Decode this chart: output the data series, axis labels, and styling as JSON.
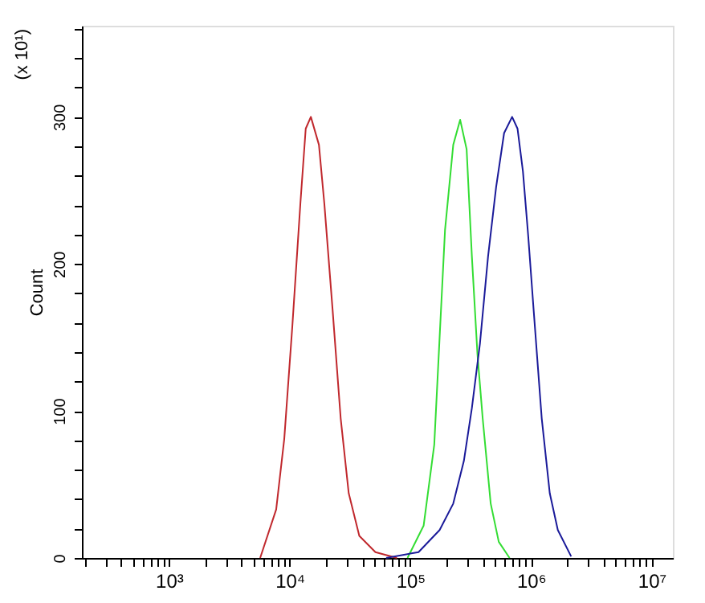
{
  "chart_data": {
    "type": "line",
    "ylabel": "Count",
    "annotations": [
      "(x 10¹)"
    ],
    "xlim": [
      190,
      15000000
    ],
    "ylim": [
      0,
      362
    ],
    "log": "x",
    "grid": false,
    "marker": "none",
    "line_style": "solid",
    "xticks": [
      {
        "value": 200,
        "label": null
      },
      {
        "value": 300,
        "label": null
      },
      {
        "value": 400,
        "label": null
      },
      {
        "value": 500,
        "label": null
      },
      {
        "value": 600,
        "label": null
      },
      {
        "value": 700,
        "label": null
      },
      {
        "value": 800,
        "label": null
      },
      {
        "value": 900,
        "label": null
      },
      {
        "value": 1000,
        "label": "10³"
      },
      {
        "value": 2000,
        "label": null
      },
      {
        "value": 3000,
        "label": null
      },
      {
        "value": 4000,
        "label": null
      },
      {
        "value": 5000,
        "label": null
      },
      {
        "value": 6000,
        "label": null
      },
      {
        "value": 7000,
        "label": null
      },
      {
        "value": 8000,
        "label": null
      },
      {
        "value": 9000,
        "label": null
      },
      {
        "value": 10000,
        "label": "10⁴"
      },
      {
        "value": 20000,
        "label": null
      },
      {
        "value": 30000,
        "label": null
      },
      {
        "value": 40000,
        "label": null
      },
      {
        "value": 50000,
        "label": null
      },
      {
        "value": 60000,
        "label": null
      },
      {
        "value": 70000,
        "label": null
      },
      {
        "value": 80000,
        "label": null
      },
      {
        "value": 90000,
        "label": null
      },
      {
        "value": 100000,
        "label": "10⁵"
      },
      {
        "value": 200000,
        "label": null
      },
      {
        "value": 300000,
        "label": null
      },
      {
        "value": 400000,
        "label": null
      },
      {
        "value": 500000,
        "label": null
      },
      {
        "value": 600000,
        "label": null
      },
      {
        "value": 700000,
        "label": null
      },
      {
        "value": 800000,
        "label": null
      },
      {
        "value": 900000,
        "label": null
      },
      {
        "value": 1000000,
        "label": "10⁶"
      },
      {
        "value": 2000000,
        "label": null
      },
      {
        "value": 3000000,
        "label": null
      },
      {
        "value": 4000000,
        "label": null
      },
      {
        "value": 5000000,
        "label": null
      },
      {
        "value": 6000000,
        "label": null
      },
      {
        "value": 7000000,
        "label": null
      },
      {
        "value": 8000000,
        "label": null
      },
      {
        "value": 9000000,
        "label": null
      },
      {
        "value": 10000000,
        "label": "10⁷"
      }
    ],
    "yticks": [
      0,
      {
        "value": 20,
        "label": null
      },
      {
        "value": 40,
        "label": null
      },
      {
        "value": 60,
        "label": null
      },
      {
        "value": 80,
        "label": null
      },
      100,
      {
        "value": 120,
        "label": null
      },
      {
        "value": 140,
        "label": null
      },
      {
        "value": 160,
        "label": null
      },
      {
        "value": 180,
        "label": null
      },
      200,
      {
        "value": 220,
        "label": null
      },
      {
        "value": 240,
        "label": null
      },
      {
        "value": 260,
        "label": null
      },
      {
        "value": 280,
        "label": null
      },
      300,
      {
        "value": 320,
        "label": null
      },
      {
        "value": 340,
        "label": null
      },
      {
        "value": 360,
        "label": null
      }
    ],
    "series": [
      {
        "color": "#c0282d",
        "x": [
          5700,
          7740,
          9030,
          10540,
          12280,
          13600,
          15000,
          17500,
          19400,
          22700,
          26500,
          30900,
          37800,
          51400,
          77500
        ],
        "values": [
          0,
          33,
          81,
          158,
          241,
          292,
          300,
          281,
          241,
          169,
          95,
          44,
          15,
          4,
          0
        ]
      },
      {
        "color": "#33dd33",
        "x": [
          94800,
          129000,
          158000,
          175000,
          194000,
          227000,
          259000,
          293000,
          324000,
          360000,
          398000,
          464000,
          541000,
          665000
        ],
        "values": [
          0,
          22,
          77,
          150,
          223,
          281,
          298,
          278,
          205,
          139,
          95,
          37,
          11,
          0
        ]
      },
      {
        "color": "#1a1a99",
        "x": [
          63100,
          117000,
          175000,
          227000,
          278000,
          324000,
          378000,
          441000,
          514000,
          599000,
          698000,
          774000,
          858000,
          949000,
          1054000,
          1228000,
          1432000,
          1670000,
          2154000
        ],
        "values": [
          0,
          4,
          19,
          37,
          66,
          102,
          146,
          205,
          252,
          289,
          300,
          292,
          263,
          219,
          168,
          95,
          44,
          19,
          1
        ]
      }
    ]
  }
}
